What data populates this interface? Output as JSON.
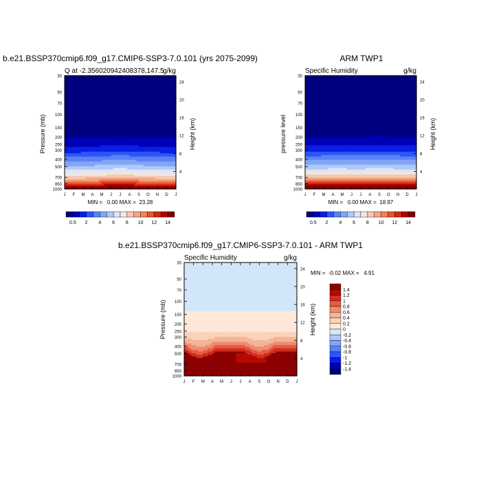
{
  "chart_data": [
    {
      "type": "heatmap",
      "title": "b.e21.BSSP370cmip6.f09_g17.CMIP6-SSP3-7.0.101 (yrs 2075-2099)",
      "left_label": "Q at -2.356020942408378,147.5",
      "right_label": "g/kg",
      "ylabel": "Pressure (mb)",
      "ylabel_right": "Height (km)",
      "x_ticks": [
        "J",
        "F",
        "M",
        "A",
        "M",
        "J",
        "J",
        "A",
        "S",
        "O",
        "N",
        "D",
        "J"
      ],
      "y_ticks": [
        "30",
        "50",
        "70",
        "100",
        "150",
        "200",
        "250",
        "300",
        "400",
        "500",
        "700",
        "850",
        "1000"
      ],
      "y_right_ticks": [
        "24",
        "20",
        "16",
        "12",
        "8",
        "4"
      ],
      "stats": "MIN =   0.00 MAX =  23.28",
      "colorbar_labels": [
        "0.5",
        "2",
        "4",
        "6",
        "8",
        "10",
        "12",
        "14"
      ],
      "field": "moisture_base",
      "profile_shift": [
        0,
        0,
        -0.2,
        -0.6,
        -1.0,
        -1.3,
        -1.5,
        -1.3,
        -0.9,
        -0.5,
        -0.2,
        0,
        0
      ]
    },
    {
      "type": "heatmap",
      "title": "ARM TWP1",
      "left_label": "Specific Humidity",
      "right_label": "g/kg",
      "ylabel": "pressure level",
      "ylabel_right": "Height (km)",
      "x_ticks": [
        "J",
        "F",
        "M",
        "A",
        "M",
        "J",
        "J",
        "A",
        "S",
        "O",
        "N",
        "D",
        "J"
      ],
      "y_ticks": [
        "30",
        "50",
        "70",
        "100",
        "150",
        "200",
        "250",
        "300",
        "400",
        "500",
        "700",
        "850",
        "1000"
      ],
      "y_right_ticks": [
        "24",
        "20",
        "16",
        "12",
        "8",
        "4"
      ],
      "stats": "MIN =   0.00 MAX =  18.97",
      "colorbar_labels": [
        "0.5",
        "2",
        "4",
        "6",
        "8",
        "10",
        "12",
        "14"
      ],
      "field": "moisture_obs",
      "profile_shift": [
        -1.2,
        -1.2,
        -1.3,
        -1.4,
        -1.4,
        -1.3,
        -1.3,
        -1.4,
        -1.5,
        -1.4,
        -1.3,
        -1.2,
        -1.2
      ]
    },
    {
      "type": "heatmap",
      "title": "b.e21.BSSP370cmip6.f09_g17.CMIP6-SSP3-7.0.101 - ARM TWP1",
      "left_label": "Specific Humidity",
      "right_label": "g/kg",
      "ylabel": "Pressure (mb)",
      "ylabel_right": "Height (km)",
      "x_ticks": [
        "J",
        "F",
        "M",
        "A",
        "M",
        "J",
        "J",
        "A",
        "S",
        "O",
        "N",
        "D",
        "J"
      ],
      "y_ticks": [
        "30",
        "50",
        "70",
        "100",
        "150",
        "200",
        "250",
        "300",
        "400",
        "500",
        "700",
        "850",
        "1000"
      ],
      "y_right_ticks": [
        "24",
        "20",
        "16",
        "12",
        "8",
        "4"
      ],
      "stats": "MIN =  -0.02 MAX =   4.91",
      "colorbar_labels": [
        "1.4",
        "1.2",
        "1",
        "0.8",
        "0.6",
        "0.4",
        "0.2",
        "0",
        "-0.2",
        "-0.4",
        "-0.6",
        "-0.8",
        "-1",
        "-1.2",
        "-1.4"
      ],
      "field": "difference"
    }
  ],
  "colors": {
    "moisture_scale": [
      "#00007f",
      "#0000b4",
      "#0a1ee6",
      "#2e55f5",
      "#5a82f5",
      "#82a5f5",
      "#afc8f5",
      "#dce6f8",
      "#f8e6dc",
      "#f5c8af",
      "#f5a582",
      "#f0825a",
      "#e6552e",
      "#d22814",
      "#b40000",
      "#7f0000"
    ],
    "diff_scale": [
      "#00007f",
      "#0000b4",
      "#0a1ee6",
      "#2e55f5",
      "#5a82f5",
      "#82a5f5",
      "#afc8f5",
      "#d2e6fa",
      "#fde8d9",
      "#f8d2b9",
      "#f5b496",
      "#ee8c6e",
      "#e65a46",
      "#d22d1e",
      "#b40a00",
      "#8b0000"
    ]
  }
}
